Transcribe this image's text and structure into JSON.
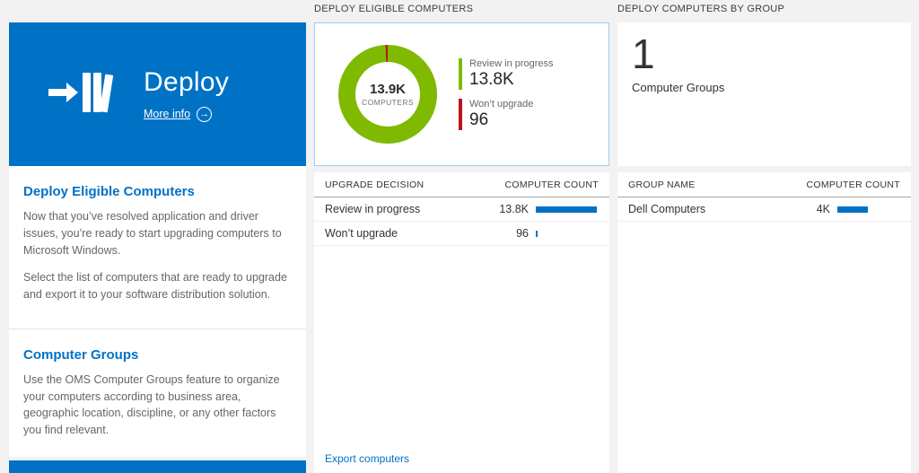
{
  "colors": {
    "accent_blue": "#0072c6",
    "chart_green": "#7fba00",
    "chart_red": "#ba141a",
    "background": "#f2f2f2"
  },
  "left_panel": {
    "tile": {
      "title": "Deploy",
      "more_info_label": "More info",
      "arrow_icon": "→"
    },
    "sections": [
      {
        "heading": "Deploy Eligible Computers",
        "paragraphs": [
          "Now that you’ve resolved application and driver issues, you’re ready to start upgrading computers to Microsoft Windows.",
          "Select the list of computers that are ready to upgrade and export it to your software distribution solution."
        ]
      },
      {
        "heading": "Computer Groups",
        "paragraphs": [
          "Use the OMS Computer Groups feature to organize your computers according to business area, geographic location, discipline, or any other factors you find relevant."
        ]
      }
    ]
  },
  "middle_panel": {
    "header": "DEPLOY ELIGIBLE COMPUTERS",
    "donut": {
      "center_value": "13.9K",
      "center_label": "COMPUTERS",
      "legend": [
        {
          "label": "Review in progress",
          "value": "13.8K",
          "numeric": 13800,
          "color": "#7fba00"
        },
        {
          "label": "Won’t upgrade",
          "value": "96",
          "numeric": 96,
          "color": "#ba141a"
        }
      ]
    },
    "table": {
      "columns": [
        "UPGRADE DECISION",
        "COMPUTER COUNT"
      ],
      "scale_max": 13800,
      "rows": [
        {
          "label": "Review in progress",
          "value": "13.8K",
          "numeric": 13800
        },
        {
          "label": "Won’t upgrade",
          "value": "96",
          "numeric": 96
        }
      ]
    },
    "footer_link": "Export computers"
  },
  "right_panel": {
    "header": "DEPLOY COMPUTERS BY GROUP",
    "summary": {
      "value": "1",
      "label": "Computer Groups"
    },
    "table": {
      "columns": [
        "GROUP NAME",
        "COMPUTER COUNT"
      ],
      "scale_max": 8000,
      "rows": [
        {
          "label": "Dell Computers",
          "value": "4K",
          "numeric": 4000
        }
      ]
    }
  },
  "chart_data": {
    "type": "pie",
    "title": "Deploy Eligible Computers",
    "center_value": "13.9K",
    "center_label": "COMPUTERS",
    "slices": [
      {
        "label": "Review in progress",
        "value": 13800,
        "color": "#7fba00"
      },
      {
        "label": "Won’t upgrade",
        "value": 96,
        "color": "#ba141a"
      }
    ],
    "legend_position": "right"
  }
}
